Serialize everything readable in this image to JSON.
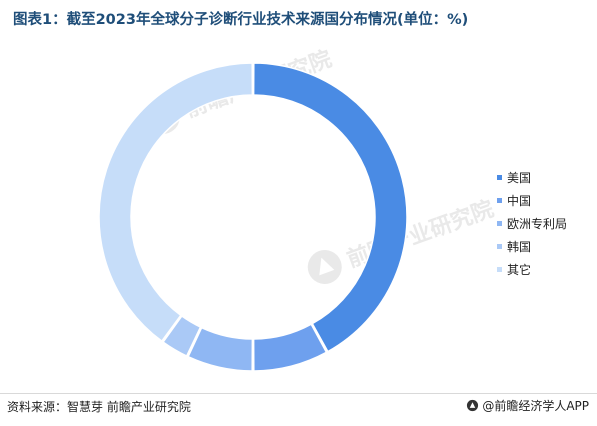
{
  "title": "图表1：截至2023年全球分子诊断行业技术来源国分布情况(单位：%)",
  "chart_data": {
    "type": "pie",
    "subtype": "donut",
    "categories": [
      "美国",
      "中国",
      "欧洲专利局",
      "韩国",
      "其它"
    ],
    "values": [
      42,
      8,
      7,
      3,
      40
    ],
    "colors": [
      "#4a8be4",
      "#6ea0ee",
      "#8fb7f3",
      "#aac9f6",
      "#c6ddf9"
    ],
    "legend_position": "right"
  },
  "footer": {
    "source": "资料来源：智慧芽 前瞻产业研究院",
    "brand": "@前瞻经济学人APP"
  },
  "watermark": {
    "text": "前瞻产业研究院"
  }
}
